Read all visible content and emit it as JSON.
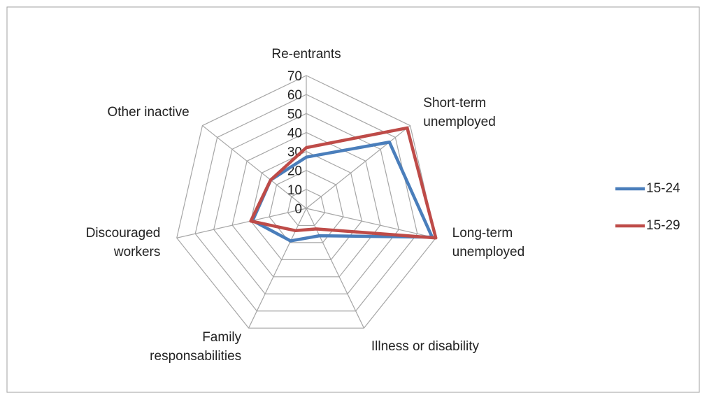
{
  "chart_data": {
    "type": "radar",
    "categories": [
      "Re-entrants",
      "Short-term unemployed",
      "Long-term unemployed",
      "Illness or disability",
      "Family responsabilities",
      "Discouraged workers",
      "Other inactive"
    ],
    "series": [
      {
        "name": "15-24",
        "color": "#4a7ebb",
        "values": [
          27,
          56,
          68,
          16,
          19,
          29,
          24
        ]
      },
      {
        "name": "15-29",
        "color": "#be4b48",
        "values": [
          32,
          68,
          70,
          12,
          13,
          30,
          24
        ]
      }
    ],
    "ylim": [
      0,
      70
    ],
    "yticks": [
      0,
      10,
      20,
      30,
      40,
      50,
      60,
      70
    ],
    "grid": true,
    "legend": "right"
  }
}
